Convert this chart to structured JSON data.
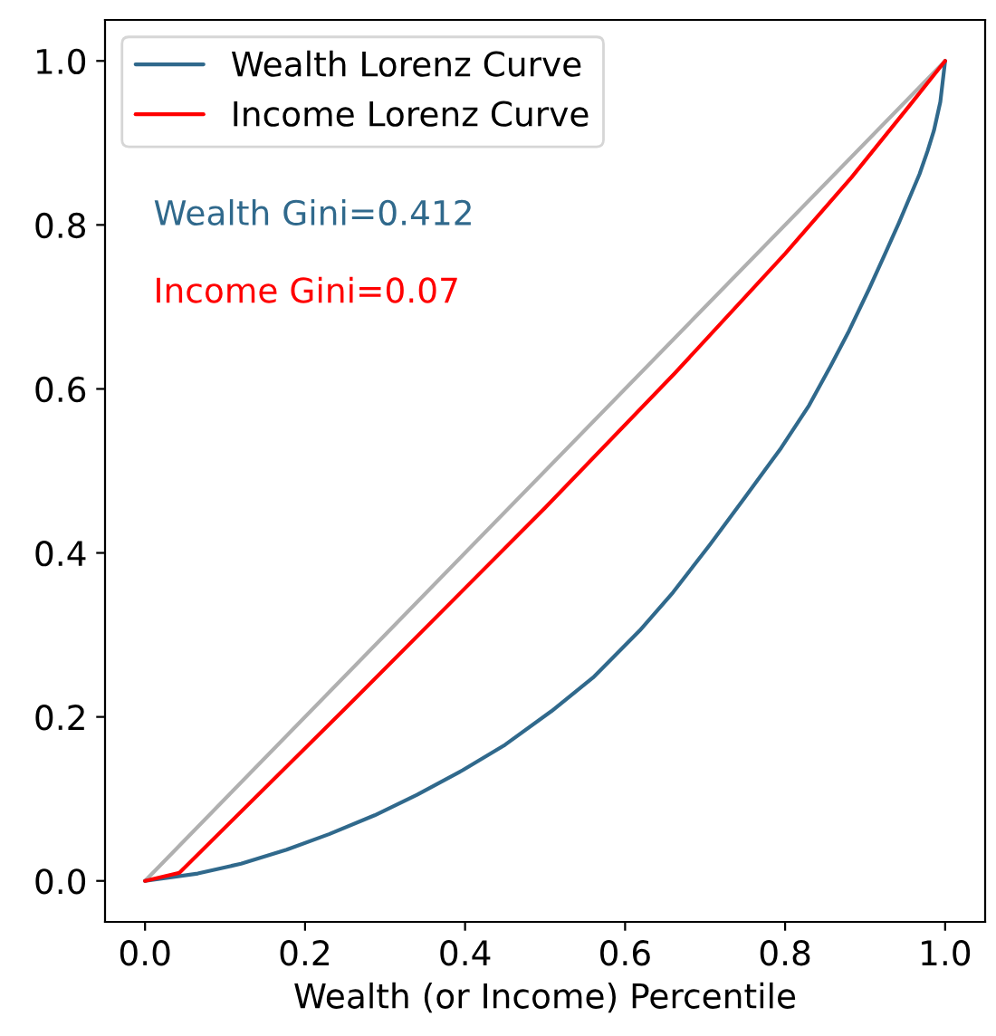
{
  "chart_data": {
    "type": "line",
    "xlabel": "Wealth (or Income) Percentile",
    "xlim": [
      -0.05,
      1.05
    ],
    "ylim": [
      -0.05,
      1.05
    ],
    "xticks": [
      {
        "value": 0,
        "label": "0.0"
      },
      0.2,
      0.4,
      0.6,
      0.8,
      {
        "value": 1,
        "label": "1.0"
      }
    ],
    "yticks": [
      {
        "value": 0,
        "label": "0.0"
      },
      0.2,
      0.4,
      0.6,
      0.8,
      {
        "value": 1,
        "label": "1.0"
      }
    ],
    "legend": "top left",
    "grid": false,
    "marker": "none",
    "line_style": "solid",
    "annotations": [
      "Wealth Gini=0.412",
      "Income Gini=0.07"
    ],
    "series": [
      {
        "color": "#b0b0b0",
        "x": [
          0,
          1
        ],
        "values": [
          0,
          1
        ]
      },
      {
        "name": "Wealth Lorenz Curve",
        "color": "#30698c",
        "x": [
          0,
          0.066,
          0.12,
          0.177,
          0.23,
          0.287,
          0.34,
          0.397,
          0.45,
          0.508,
          0.56,
          0.618,
          0.66,
          0.706,
          0.75,
          0.795,
          0.83,
          0.857,
          0.88,
          0.905,
          0.925,
          0.942,
          0.968,
          0.978,
          0.986,
          0.994,
          1.0
        ],
        "values": [
          0,
          0.009,
          0.021,
          0.038,
          0.057,
          0.08,
          0.105,
          0.135,
          0.166,
          0.207,
          0.248,
          0.305,
          0.352,
          0.41,
          0.468,
          0.528,
          0.58,
          0.628,
          0.671,
          0.722,
          0.765,
          0.802,
          0.862,
          0.89,
          0.915,
          0.95,
          1.0
        ]
      },
      {
        "name": "Income Lorenz Curve",
        "color": "#ff0000",
        "x": [
          0,
          0.043,
          0.25,
          0.5,
          0.662,
          0.8,
          0.883,
          0.955,
          1.0
        ],
        "values": [
          0,
          0.01,
          0.21,
          0.455,
          0.619,
          0.765,
          0.858,
          0.945,
          1.0
        ]
      }
    ]
  }
}
